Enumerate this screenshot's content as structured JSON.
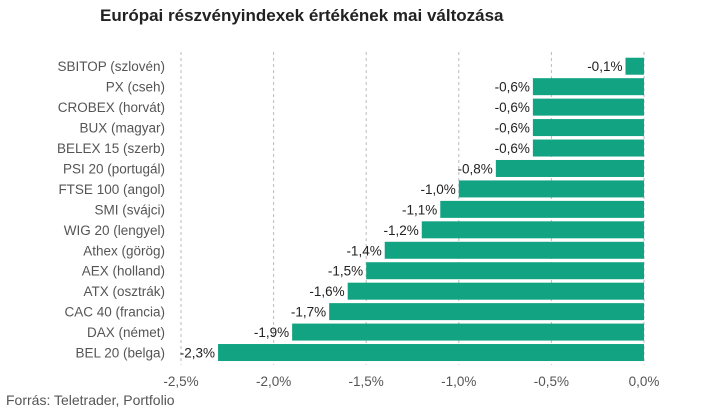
{
  "chart_data": {
    "type": "bar",
    "orientation": "horizontal",
    "title": "Európai részvényindexek értékének mai változása",
    "categories": [
      "SBITOP (szlovén)",
      "PX (cseh)",
      "CROBEX (horvát)",
      "BUX (magyar)",
      "BELEX 15 (szerb)",
      "PSI 20 (portugál)",
      "FTSE 100 (angol)",
      "SMI (svájci)",
      "WIG 20 (lengyel)",
      "Athex (görög)",
      "AEX (holland)",
      "ATX (osztrák)",
      "CAC 40 (francia)",
      "DAX (német)",
      "BEL 20 (belga)"
    ],
    "values": [
      -0.1,
      -0.6,
      -0.6,
      -0.6,
      -0.6,
      -0.8,
      -1.0,
      -1.1,
      -1.2,
      -1.4,
      -1.5,
      -1.6,
      -1.7,
      -1.9,
      -2.3
    ],
    "value_labels": [
      "-0,1%",
      "-0,6%",
      "-0,6%",
      "-0,6%",
      "-0,6%",
      "-0,8%",
      "-1,0%",
      "-1,1%",
      "-1,2%",
      "-1,4%",
      "-1,5%",
      "-1,6%",
      "-1,7%",
      "-1,9%",
      "-2,3%"
    ],
    "ticks": [
      -2.5,
      -2.0,
      -1.5,
      -1.0,
      -0.5,
      0.0
    ],
    "tick_labels": [
      "-2,5%",
      "-2,0%",
      "-1,5%",
      "-1,0%",
      "-0,5%",
      "0,0%"
    ],
    "xlim": [
      -2.5,
      0.0
    ],
    "grid": "vertical-dashed",
    "bar_color": "#12a382",
    "xlabel": "",
    "ylabel": ""
  },
  "source": "Forrás: Teletrader, Portfolio"
}
